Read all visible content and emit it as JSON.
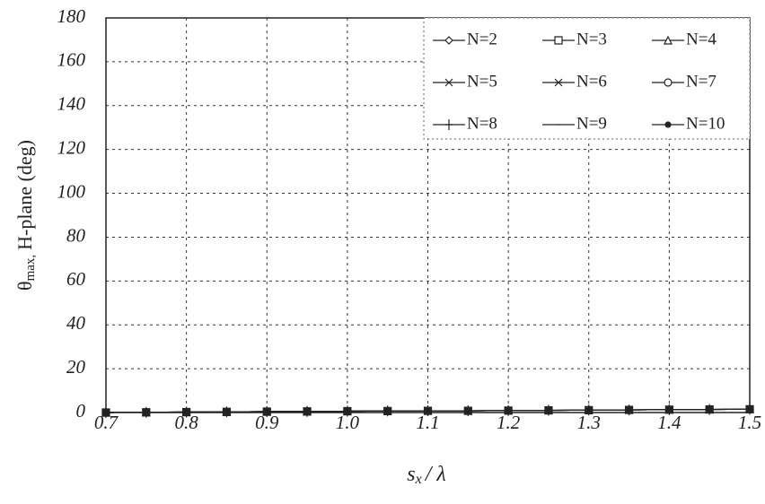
{
  "chart_data": {
    "type": "line",
    "ylabel": {
      "symbol": "θ",
      "subscript": "max,",
      "text": "H-plane (deg)"
    },
    "xlabel": {
      "symbol": "s",
      "subscript": "x",
      "text": "/ λ"
    },
    "x": [
      0.7,
      0.75,
      0.8,
      0.85,
      0.9,
      0.95,
      1.0,
      1.05,
      1.1,
      1.15,
      1.2,
      1.25,
      1.3,
      1.35,
      1.4,
      1.45,
      1.5
    ],
    "series": [
      {
        "name": "N=2",
        "color": "#222222",
        "marker": "diamond",
        "values": [
          0,
          0.1,
          0.2,
          0.3,
          0.4,
          0.5,
          0.6,
          0.7,
          0.8,
          0.8,
          0.9,
          1.0,
          1.1,
          1.2,
          1.3,
          1.4,
          1.5
        ]
      },
      {
        "name": "N=3",
        "color": "#222222",
        "marker": "square",
        "values": [
          0,
          0.1,
          0.2,
          0.3,
          0.4,
          0.5,
          0.6,
          0.7,
          0.8,
          0.8,
          0.9,
          1.0,
          1.1,
          1.2,
          1.3,
          1.4,
          1.5
        ]
      },
      {
        "name": "N=4",
        "color": "#222222",
        "marker": "triangle",
        "values": [
          0,
          0.1,
          0.2,
          0.3,
          0.4,
          0.5,
          0.6,
          0.7,
          0.8,
          0.8,
          0.9,
          1.0,
          1.1,
          1.2,
          1.3,
          1.4,
          1.5
        ]
      },
      {
        "name": "N=5",
        "color": "#222222",
        "marker": "x",
        "values": [
          0,
          0.1,
          0.2,
          0.3,
          0.4,
          0.5,
          0.6,
          0.7,
          0.8,
          0.8,
          0.9,
          1.0,
          1.1,
          1.2,
          1.3,
          1.4,
          1.5
        ]
      },
      {
        "name": "N=6",
        "color": "#222222",
        "marker": "asterisk",
        "values": [
          0,
          0.1,
          0.2,
          0.3,
          0.4,
          0.5,
          0.6,
          0.7,
          0.8,
          0.8,
          0.9,
          1.0,
          1.1,
          1.2,
          1.3,
          1.4,
          1.5
        ]
      },
      {
        "name": "N=7",
        "color": "#222222",
        "marker": "circle",
        "values": [
          0,
          0.1,
          0.2,
          0.3,
          0.4,
          0.5,
          0.6,
          0.7,
          0.8,
          0.8,
          0.9,
          1.0,
          1.1,
          1.2,
          1.3,
          1.4,
          1.5
        ]
      },
      {
        "name": "N=8",
        "color": "#222222",
        "marker": "plus",
        "values": [
          0,
          0.1,
          0.2,
          0.3,
          0.4,
          0.5,
          0.6,
          0.7,
          0.8,
          0.8,
          0.9,
          1.0,
          1.1,
          1.2,
          1.3,
          1.4,
          1.5
        ]
      },
      {
        "name": "N=9",
        "color": "#222222",
        "marker": "none",
        "values": [
          0,
          0.1,
          0.2,
          0.3,
          0.4,
          0.5,
          0.6,
          0.7,
          0.8,
          0.8,
          0.9,
          1.0,
          1.1,
          1.2,
          1.3,
          1.4,
          1.5
        ]
      },
      {
        "name": "N=10",
        "color": "#222222",
        "marker": "dot",
        "values": [
          0,
          0.1,
          0.2,
          0.3,
          0.4,
          0.5,
          0.6,
          0.7,
          0.8,
          0.8,
          0.9,
          1.0,
          1.1,
          1.2,
          1.3,
          1.4,
          1.5
        ]
      }
    ],
    "xlim": [
      0.7,
      1.5
    ],
    "xticks": [
      0.7,
      0.8,
      0.9,
      {
        "value": 1,
        "label": "1.0"
      },
      1.1,
      1.2,
      1.3,
      1.4,
      1.5
    ],
    "ylim": [
      0,
      180
    ],
    "yticks": [
      0,
      20,
      40,
      60,
      80,
      100,
      120,
      140,
      160,
      180
    ],
    "grid": true,
    "legend": "upper right"
  }
}
